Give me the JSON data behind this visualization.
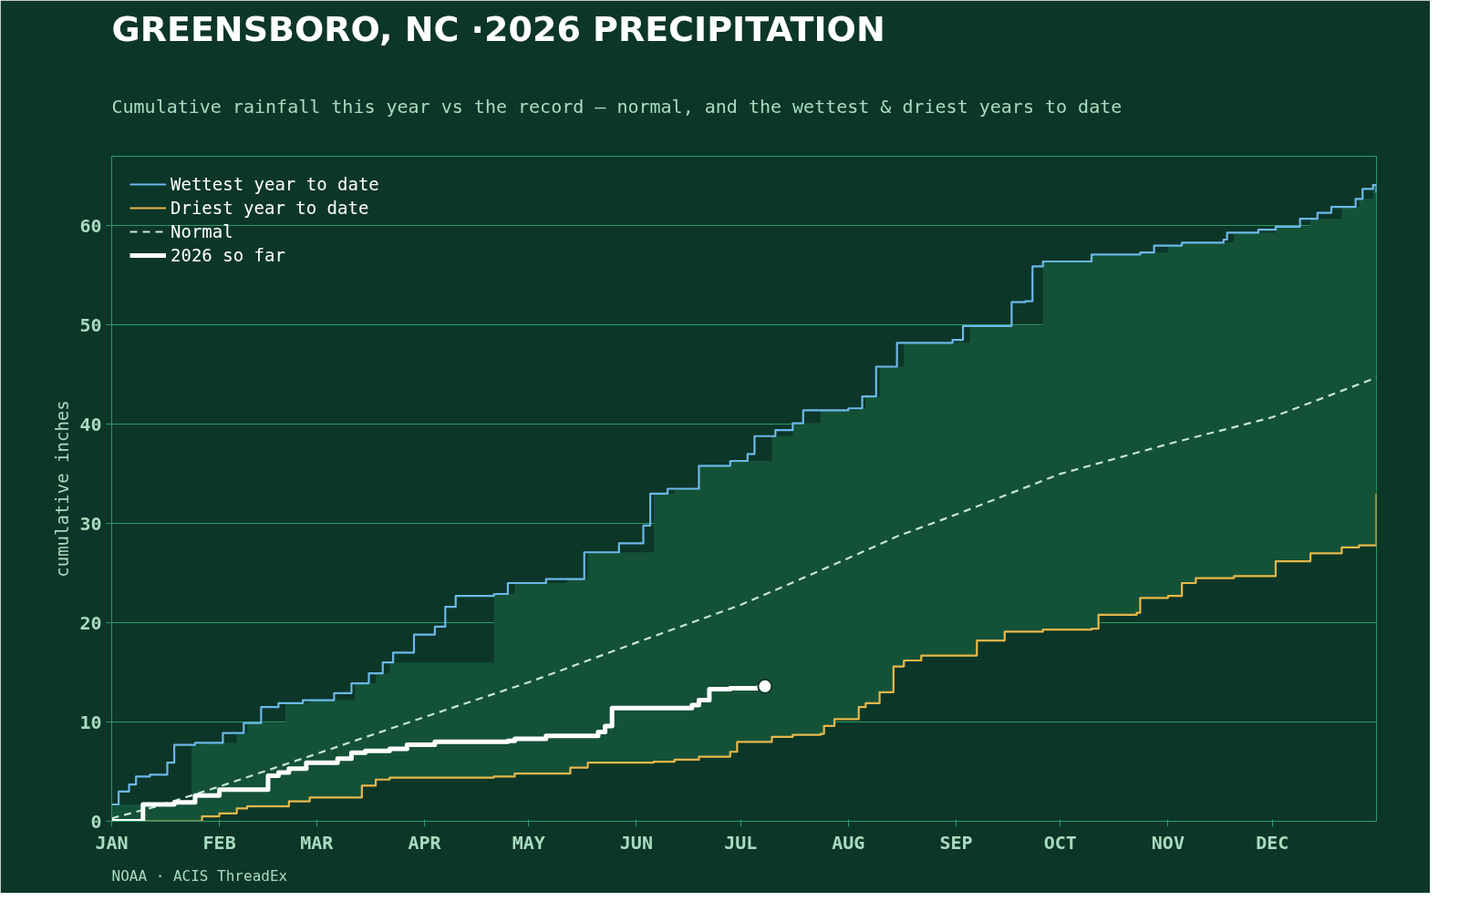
{
  "chart_data": {
    "type": "step",
    "title": "GREENSBORO, NC ·2026 PRECIPITATION",
    "subtitle": "Cumulative rainfall this year vs the record — normal, and the wettest & driest years to date",
    "ylabel": "cumulative inches",
    "annotations": [
      "NOAA · ACIS ThreadEx"
    ],
    "xlim": [
      "2026-01-01",
      "2026-12-31"
    ],
    "xticks": [
      {
        "value": "2026-01-01",
        "label": "JAN"
      },
      {
        "value": "2026-02-01",
        "label": "FEB"
      },
      {
        "value": "2026-03-01",
        "label": "MAR"
      },
      {
        "value": "2026-04-01",
        "label": "APR"
      },
      {
        "value": "2026-05-01",
        "label": "MAY"
      },
      {
        "value": "2026-06-01",
        "label": "JUN"
      },
      {
        "value": "2026-07-01",
        "label": "JUL"
      },
      {
        "value": "2026-08-01",
        "label": "AUG"
      },
      {
        "value": "2026-09-01",
        "label": "SEP"
      },
      {
        "value": "2026-10-01",
        "label": "OCT"
      },
      {
        "value": "2026-11-01",
        "label": "NOV"
      },
      {
        "value": "2026-12-01",
        "label": "DEC"
      }
    ],
    "ylim": [
      0,
      67
    ],
    "yticks": [
      0,
      10,
      20,
      30,
      40,
      50,
      60
    ],
    "grid": "y",
    "legend": "top left",
    "series": [
      {
        "name": "Wettest year to date",
        "color": "#6cb8ea",
        "x": [
          "2026-01-01",
          "2026-01-03",
          "2026-01-06",
          "2026-01-08",
          "2026-01-12",
          "2026-01-17",
          "2026-01-19",
          "2026-01-25",
          "2026-02-02",
          "2026-02-08",
          "2026-02-13",
          "2026-02-18",
          "2026-02-25",
          "2026-03-06",
          "2026-03-11",
          "2026-03-16",
          "2026-03-20",
          "2026-03-23",
          "2026-03-29",
          "2026-04-04",
          "2026-04-07",
          "2026-04-10",
          "2026-04-21",
          "2026-04-25",
          "2026-05-06",
          "2026-05-17",
          "2026-05-27",
          "2026-06-03",
          "2026-06-05",
          "2026-06-10",
          "2026-06-19",
          "2026-06-28",
          "2026-07-03",
          "2026-07-05",
          "2026-07-11",
          "2026-07-16",
          "2026-07-19",
          "2026-08-01",
          "2026-08-05",
          "2026-08-09",
          "2026-08-15",
          "2026-08-31",
          "2026-09-03",
          "2026-09-16",
          "2026-09-17",
          "2026-09-21",
          "2026-09-23",
          "2026-09-26",
          "2026-10-07",
          "2026-10-10",
          "2026-10-24",
          "2026-10-28",
          "2026-11-05",
          "2026-11-17",
          "2026-11-18",
          "2026-11-27",
          "2026-12-02",
          "2026-12-09",
          "2026-12-14",
          "2026-12-18",
          "2026-12-25",
          "2026-12-27",
          "2026-12-30",
          "2026-12-31"
        ],
        "values": [
          1.7,
          3.0,
          3.7,
          4.5,
          4.7,
          5.9,
          7.7,
          7.9,
          8.9,
          9.9,
          11.5,
          11.9,
          12.2,
          12.9,
          13.9,
          14.9,
          16.0,
          17.0,
          18.8,
          19.6,
          21.6,
          22.7,
          22.9,
          24.0,
          24.4,
          27.1,
          28.0,
          29.8,
          33.0,
          33.5,
          35.8,
          36.3,
          37.0,
          38.8,
          39.4,
          40.1,
          41.4,
          41.6,
          42.8,
          45.8,
          48.2,
          48.5,
          49.9,
          49.9,
          52.3,
          52.4,
          55.9,
          56.4,
          56.4,
          57.1,
          57.3,
          58.0,
          58.3,
          58.6,
          59.3,
          59.6,
          59.9,
          60.7,
          61.3,
          61.9,
          62.7,
          63.7,
          64.1,
          63.3
        ]
      },
      {
        "name": "Driest year to date",
        "color": "#e8b84a",
        "x": [
          "2026-01-01",
          "2026-01-24",
          "2026-01-27",
          "2026-02-01",
          "2026-02-06",
          "2026-02-09",
          "2026-02-20",
          "2026-02-21",
          "2026-02-27",
          "2026-03-12",
          "2026-03-14",
          "2026-03-18",
          "2026-03-22",
          "2026-04-21",
          "2026-04-27",
          "2026-05-12",
          "2026-05-13",
          "2026-05-18",
          "2026-06-06",
          "2026-06-12",
          "2026-06-19",
          "2026-06-27",
          "2026-06-28",
          "2026-06-30",
          "2026-07-10",
          "2026-07-16",
          "2026-07-24",
          "2026-07-25",
          "2026-07-28",
          "2026-08-04",
          "2026-08-06",
          "2026-08-10",
          "2026-08-14",
          "2026-08-17",
          "2026-08-22",
          "2026-09-05",
          "2026-09-07",
          "2026-09-15",
          "2026-09-26",
          "2026-10-10",
          "2026-10-12",
          "2026-10-23",
          "2026-10-24",
          "2026-11-01",
          "2026-11-05",
          "2026-11-09",
          "2026-11-20",
          "2026-12-02",
          "2026-12-12",
          "2026-12-21",
          "2026-12-26",
          "2026-12-30",
          "2026-12-31"
        ],
        "values": [
          0.0,
          0.0,
          0.5,
          0.8,
          1.3,
          1.5,
          1.5,
          2.0,
          2.4,
          2.4,
          3.6,
          4.2,
          4.4,
          4.5,
          4.8,
          4.8,
          5.4,
          5.9,
          6.0,
          6.2,
          6.5,
          6.5,
          7.0,
          8.0,
          8.5,
          8.7,
          8.8,
          9.6,
          10.3,
          11.5,
          11.9,
          13.0,
          15.6,
          16.2,
          16.7,
          16.7,
          18.2,
          19.1,
          19.3,
          19.4,
          20.8,
          21.0,
          22.5,
          22.7,
          24.0,
          24.5,
          24.7,
          26.2,
          27.0,
          27.6,
          27.8,
          27.8,
          33.0
        ],
        "lower": [
          0.0,
          0.0,
          0.5,
          0.8,
          1.3,
          1.5,
          1.5,
          2.0,
          2.4,
          2.4,
          3.6,
          4.2,
          4.4,
          4.5,
          4.8,
          4.8,
          5.4,
          5.9,
          6.0,
          6.2,
          6.5,
          6.5,
          7.0,
          8.0,
          8.5,
          8.7,
          8.8,
          9.6,
          10.3,
          11.5,
          11.9,
          13.0,
          15.6,
          16.2,
          16.7,
          16.7,
          18.2,
          19.1,
          19.3,
          19.4,
          20.8,
          21.0,
          22.5,
          22.7,
          24.0,
          24.5,
          24.7,
          26.2,
          27.0,
          27.6,
          27.8,
          27.8,
          33.0
        ],
        "upper": [
          1.7,
          7.7,
          7.9,
          7.9,
          8.9,
          9.9,
          11.9,
          11.9,
          12.2,
          13.9,
          13.9,
          14.9,
          16.0,
          22.9,
          24.0,
          24.4,
          24.4,
          27.1,
          33.0,
          33.5,
          35.8,
          35.8,
          36.3,
          36.3,
          38.8,
          40.1,
          41.4,
          41.4,
          41.4,
          41.6,
          42.8,
          45.8,
          45.8,
          48.2,
          48.2,
          49.9,
          49.9,
          49.9,
          56.4,
          57.1,
          57.1,
          57.1,
          57.3,
          58.0,
          58.3,
          58.3,
          59.3,
          59.9,
          60.7,
          61.9,
          62.7,
          64.1,
          63.3
        ]
      },
      {
        "name": "Normal",
        "color": "#c8e6d4",
        "type": "line",
        "line_style": "dashed",
        "x": [
          "2026-01-01",
          "2026-01-15",
          "2026-02-01",
          "2026-03-01",
          "2026-04-01",
          "2026-05-01",
          "2026-06-01",
          "2026-07-01",
          "2026-07-15",
          "2026-08-01",
          "2026-08-15",
          "2026-09-01",
          "2026-10-01",
          "2026-11-01",
          "2026-12-01",
          "2026-12-31"
        ],
        "values": [
          0.3,
          1.6,
          3.5,
          6.8,
          10.5,
          14.0,
          18.0,
          21.8,
          23.9,
          26.5,
          28.7,
          30.9,
          35.0,
          38.0,
          40.7,
          44.7
        ]
      },
      {
        "name": "2026 so far",
        "color": "#ffffff",
        "x": [
          "2026-01-01",
          "2026-01-10",
          "2026-01-19",
          "2026-01-25",
          "2026-02-01",
          "2026-02-15",
          "2026-02-18",
          "2026-02-21",
          "2026-02-26",
          "2026-03-07",
          "2026-03-11",
          "2026-03-15",
          "2026-03-22",
          "2026-03-27",
          "2026-04-04",
          "2026-04-25",
          "2026-04-27",
          "2026-05-06",
          "2026-05-21",
          "2026-05-23",
          "2026-05-25",
          "2026-06-17",
          "2026-06-19",
          "2026-06-22",
          "2026-06-28",
          "2026-07-06",
          "2026-07-08"
        ],
        "values": [
          0.0,
          1.7,
          1.9,
          2.6,
          3.2,
          4.6,
          4.9,
          5.3,
          5.9,
          6.3,
          6.9,
          7.1,
          7.3,
          7.7,
          8.0,
          8.1,
          8.3,
          8.6,
          9.0,
          9.6,
          11.4,
          11.7,
          12.2,
          13.3,
          13.4,
          13.5,
          13.6
        ]
      },
      {
        "type": "scatter",
        "color": "#ffffff",
        "marker": "circle",
        "x": [
          "2026-07-08"
        ],
        "values": [
          13.6
        ]
      }
    ]
  }
}
